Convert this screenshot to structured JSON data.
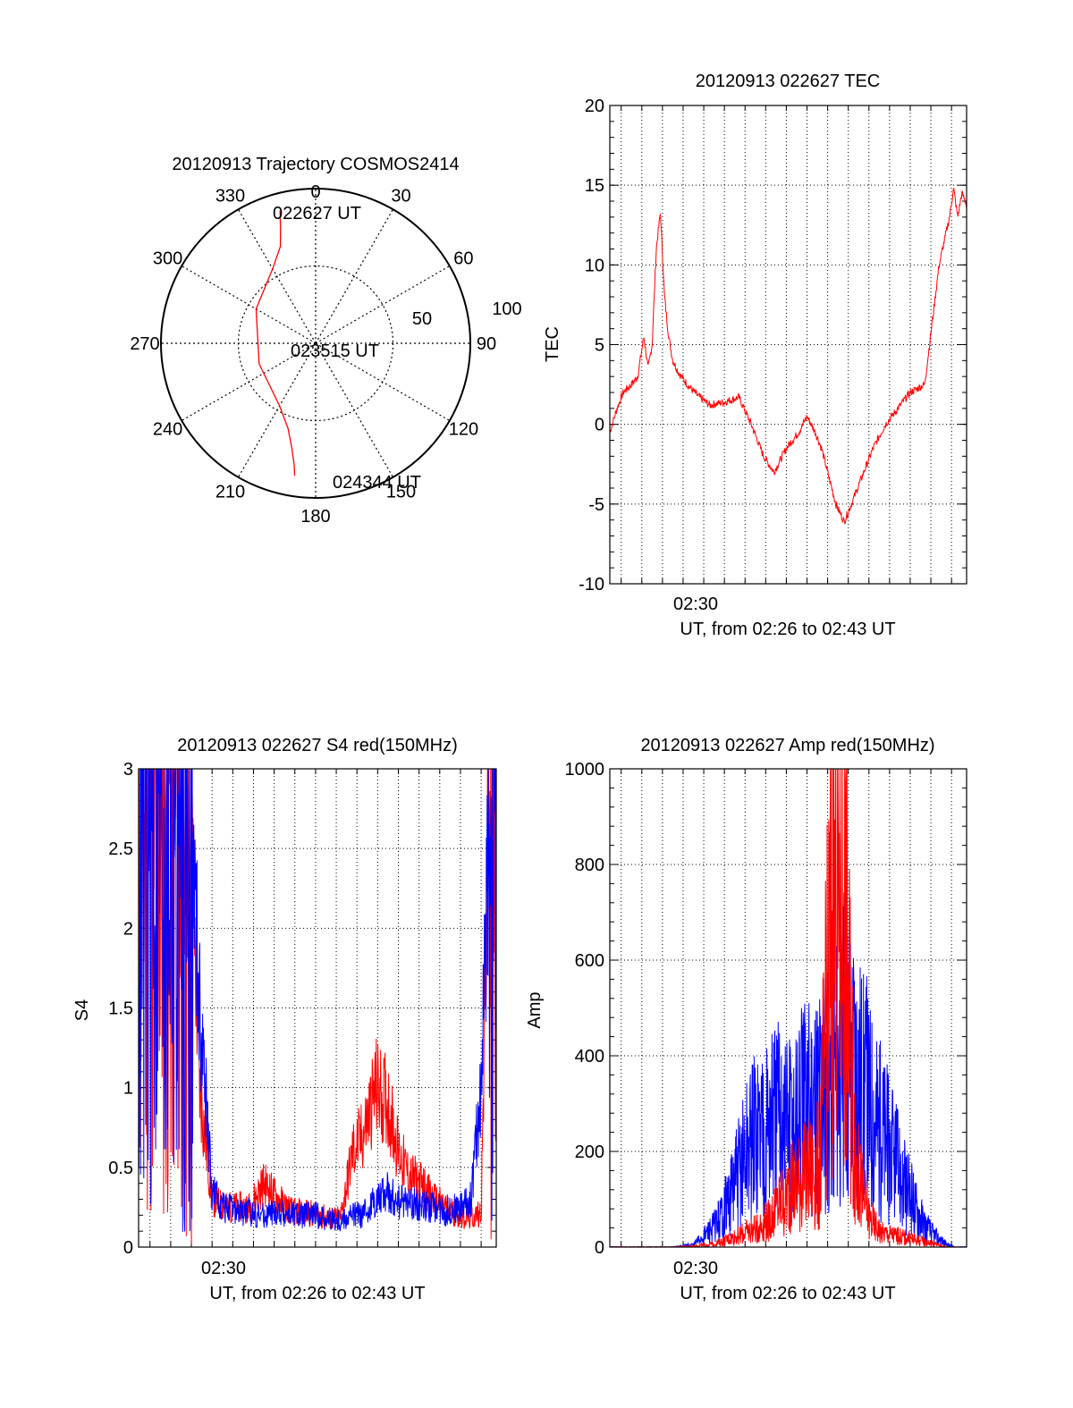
{
  "colors": {
    "red": "#ff0000",
    "blue": "#0000ff",
    "axis": "#000000",
    "grid": "#000000"
  },
  "chart_data": [
    {
      "type": "polar",
      "title": "20120913 Trajectory COSMOS2414",
      "azimuth_labels": [
        "0",
        "30",
        "60",
        "90",
        "120",
        "150",
        "180",
        "210",
        "240",
        "270",
        "300",
        "330"
      ],
      "radius_labels": [
        "50",
        "100"
      ],
      "grid": true,
      "trajectory": {
        "color": "red",
        "points": [
          {
            "az": 345,
            "el": 10
          },
          {
            "az": 343,
            "el": 20
          },
          {
            "az": 340,
            "el": 30
          },
          {
            "az": 330,
            "el": 40
          },
          {
            "az": 300,
            "el": 50
          },
          {
            "az": 250,
            "el": 55
          },
          {
            "az": 210,
            "el": 48
          },
          {
            "az": 198,
            "el": 38
          },
          {
            "az": 193,
            "el": 28
          },
          {
            "az": 190,
            "el": 18
          },
          {
            "az": 189,
            "el": 12
          }
        ]
      },
      "annotations": [
        "022627 UT",
        "023515 UT",
        "024344 UT"
      ]
    },
    {
      "type": "line",
      "title": "20120913 022627 TEC",
      "xlabel": "UT, from 02:26 to 02:43 UT",
      "ylabel": "TEC",
      "xlim": [
        26.45,
        43.73
      ],
      "ylim": [
        -10,
        20
      ],
      "yticks": [
        "-10",
        "-5",
        "0",
        "5",
        "10",
        "15",
        "20"
      ],
      "xtick_labels": [
        "02:30"
      ],
      "xtick_values": [
        30
      ],
      "grid": true,
      "series": [
        {
          "color": "red",
          "x": [
            26.45,
            26.8,
            27.1,
            27.5,
            27.8,
            28.1,
            28.3,
            28.5,
            28.7,
            28.9,
            29.1,
            29.3,
            29.5,
            29.8,
            30.2,
            30.7,
            31.3,
            32,
            32.7,
            33.3,
            33.9,
            34.4,
            35.0,
            35.6,
            36.0,
            36.4,
            36.7,
            37.0,
            37.4,
            37.8,
            38.0,
            38.3,
            38.6,
            39.2,
            39.8,
            40.4,
            41.0,
            41.7,
            42.4,
            42.9,
            43.1,
            43.3,
            43.5,
            43.73
          ],
          "y": [
            -0.5,
            1.0,
            2.0,
            2.5,
            3.0,
            5.5,
            3.5,
            5.0,
            11.0,
            13.3,
            8.0,
            5.5,
            4.0,
            3.2,
            2.5,
            1.8,
            1.2,
            1.4,
            1.7,
            0.0,
            -2.0,
            -3.0,
            -1.5,
            -0.5,
            0.5,
            -0.5,
            -1.5,
            -3.0,
            -5.0,
            -6.1,
            -5.5,
            -4.5,
            -3.5,
            -1.5,
            0.0,
            1.0,
            2.0,
            2.5,
            10.0,
            13.0,
            14.8,
            13.0,
            14.5,
            13.8
          ]
        }
      ]
    },
    {
      "type": "line",
      "title": "20120913 022627 S4 red(150MHz)",
      "xlabel": "UT, from 02:26 to 02:43 UT",
      "ylabel": "S4",
      "xlim": [
        26.45,
        43.73
      ],
      "ylim": [
        0,
        3
      ],
      "yticks": [
        "0",
        "0.5",
        "1",
        "1.5",
        "2",
        "2.5",
        "3"
      ],
      "xtick_labels": [
        "02:30"
      ],
      "xtick_values": [
        30
      ],
      "grid": true,
      "series": [
        {
          "color": "red",
          "x": [
            26.45,
            27.0,
            27.6,
            28.2,
            28.9,
            29.4,
            30.0,
            30.6,
            31.2,
            31.8,
            32.5,
            33.2,
            33.9,
            34.5,
            35.1,
            35.6,
            36.2,
            36.8,
            37.3,
            37.9,
            38.5,
            39.0,
            39.5,
            40.1,
            40.7,
            41.3,
            41.9,
            42.5,
            43.0,
            43.4,
            43.73
          ],
          "y": [
            3.0,
            3.0,
            3.0,
            3.0,
            3.0,
            1.0,
            0.3,
            0.25,
            0.25,
            0.25,
            0.4,
            0.3,
            0.22,
            0.22,
            0.2,
            0.18,
            0.18,
            0.6,
            0.7,
            1.0,
            0.9,
            0.6,
            0.45,
            0.4,
            0.3,
            0.25,
            0.2,
            0.18,
            0.22,
            3.0,
            3.0
          ]
        },
        {
          "color": "blue",
          "x": [
            26.45,
            27.0,
            27.6,
            28.2,
            28.9,
            29.4,
            30.0,
            30.6,
            31.2,
            31.8,
            32.5,
            33.2,
            33.9,
            34.5,
            35.1,
            35.6,
            36.2,
            36.8,
            37.3,
            37.9,
            38.5,
            39.0,
            39.5,
            40.1,
            40.7,
            41.3,
            41.9,
            42.5,
            43.0,
            43.4,
            43.73
          ],
          "y": [
            3.0,
            3.0,
            3.0,
            3.0,
            3.0,
            1.5,
            0.35,
            0.25,
            0.22,
            0.22,
            0.2,
            0.22,
            0.2,
            0.2,
            0.2,
            0.18,
            0.16,
            0.2,
            0.2,
            0.3,
            0.35,
            0.28,
            0.28,
            0.26,
            0.25,
            0.22,
            0.25,
            0.3,
            1.0,
            2.8,
            3.0
          ]
        }
      ]
    },
    {
      "type": "line",
      "title": "20120913 022627 Amp red(150MHz)",
      "xlabel": "UT, from 02:26 to 02:43 UT",
      "ylabel": "Amp",
      "xlim": [
        26.45,
        43.73
      ],
      "ylim": [
        0,
        1000
      ],
      "yticks": [
        "0",
        "200",
        "400",
        "600",
        "800",
        "1000"
      ],
      "xtick_labels": [
        "02:30"
      ],
      "xtick_values": [
        30
      ],
      "grid": true,
      "series": [
        {
          "color": "blue",
          "x": [
            26.45,
            27.5,
            28.5,
            29.5,
            30.5,
            31.2,
            31.8,
            32.4,
            33.0,
            33.6,
            34.2,
            34.8,
            35.4,
            36.0,
            36.6,
            37.2,
            37.8,
            38.4,
            39.0,
            39.6,
            40.2,
            40.8,
            41.3,
            41.8,
            42.3,
            42.8,
            43.2,
            43.73
          ],
          "y": [
            0,
            0,
            0,
            0,
            5,
            30,
            60,
            120,
            190,
            240,
            260,
            270,
            250,
            300,
            330,
            360,
            420,
            380,
            300,
            240,
            180,
            120,
            80,
            40,
            20,
            5,
            0,
            0
          ]
        },
        {
          "color": "red",
          "x": [
            26.45,
            27.5,
            28.5,
            29.5,
            30.5,
            31.2,
            31.8,
            32.4,
            33.0,
            33.6,
            34.2,
            34.8,
            35.4,
            36.0,
            36.6,
            37.2,
            37.8,
            38.4,
            39.0,
            39.6,
            40.2,
            40.8,
            41.3,
            41.8,
            42.3,
            42.8,
            43.2,
            43.73
          ],
          "y": [
            0,
            0,
            0,
            0,
            2,
            5,
            10,
            20,
            30,
            40,
            60,
            100,
            130,
            150,
            180,
            700,
            720,
            160,
            60,
            30,
            25,
            20,
            15,
            10,
            5,
            0,
            0,
            0
          ]
        }
      ]
    }
  ]
}
